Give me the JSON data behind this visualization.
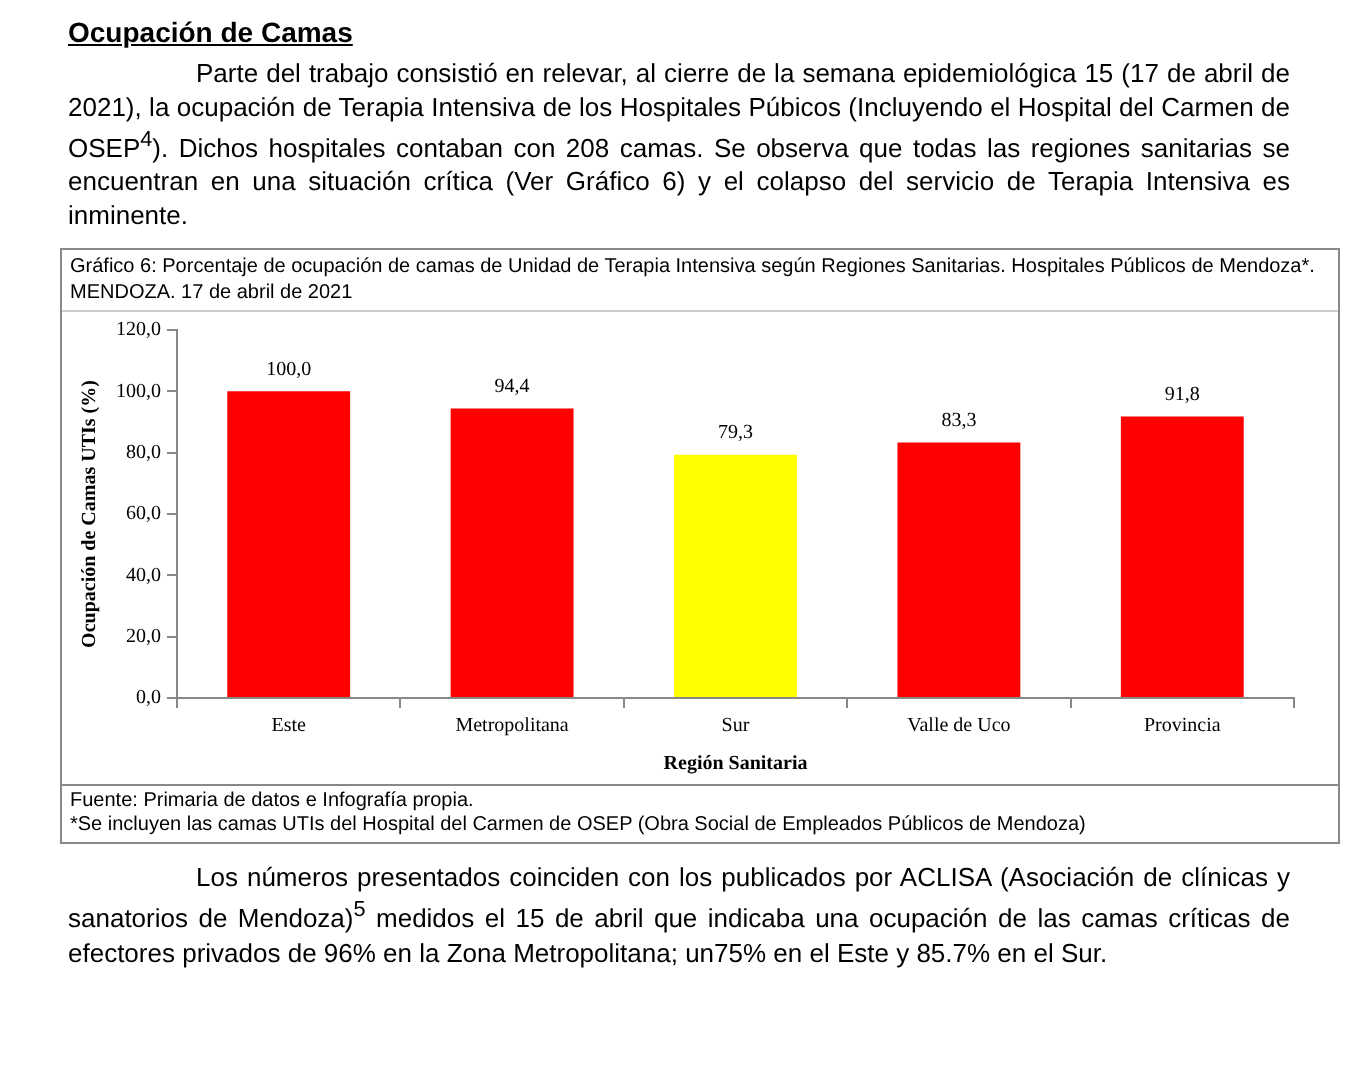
{
  "chart_data": {
    "type": "bar",
    "title": "Gráfico 6: Porcentaje de ocupación de camas de Unidad de Terapia Intensiva según Regiones Sanitarias. Hospitales Públicos de Mendoza*. MENDOZA. 17 de abril de 2021",
    "xlabel": "Región Sanitaria",
    "ylabel": "Ocupación de Camas UTIs (%)",
    "categories": [
      "Este",
      "Metropolitana",
      "Sur",
      "Valle de Uco",
      "Provincia"
    ],
    "values": [
      100.0,
      94.4,
      79.3,
      83.3,
      91.8
    ],
    "colors": [
      "#ff0000",
      "#ff0000",
      "#ffff00",
      "#ff0000",
      "#ff0000"
    ],
    "value_labels": [
      "100,0",
      "94,4",
      "79,3",
      "83,3",
      "91,8"
    ],
    "ylim": [
      0,
      120
    ],
    "yticks": [
      {
        "value": 0,
        "label": "0,0"
      },
      {
        "value": 20,
        "label": "20,0"
      },
      {
        "value": 40,
        "label": "40,0"
      },
      {
        "value": 60,
        "label": "60,0"
      },
      {
        "value": 80,
        "label": "80,0"
      },
      {
        "value": 100,
        "label": "100,0"
      },
      {
        "value": 120,
        "label": "120,0"
      }
    ],
    "annotations": [
      "Ocupación de Camas",
      "Parte del trabajo consistió en relevar, al cierre de la semana epidemiológica 15 (17 de abril de 2021), la ocupación de Terapia Intensiva de los Hospitales Púbicos (Incluyendo el Hospital del Carmen de OSEP$^{4}$). Dichos hospitales contaban con 208 camas. Se observa que todas las regiones sanitarias se encuentran en una situación crítica (Ver Gráfico 6) y el colapso del servicio de Terapia Intensiva es inminente.",
      "Fuente: Primaria de datos e Infografía propia.",
      "*Se incluyen las camas UTIs del Hospital del Carmen de OSEP (Obra Social de Empleados Públicos de Mendoza)",
      "Los números presentados coinciden con los publicados por ACLISA (Asociación de clínicas y sanatorios de Mendoza)$^{5}$ medidos el 15 de abril que indicaba una ocupación de las camas críticas de efectores privados de 96% en la Zona Metropolitana; un75% en el Este y 85.7% en el Sur."
    ]
  }
}
